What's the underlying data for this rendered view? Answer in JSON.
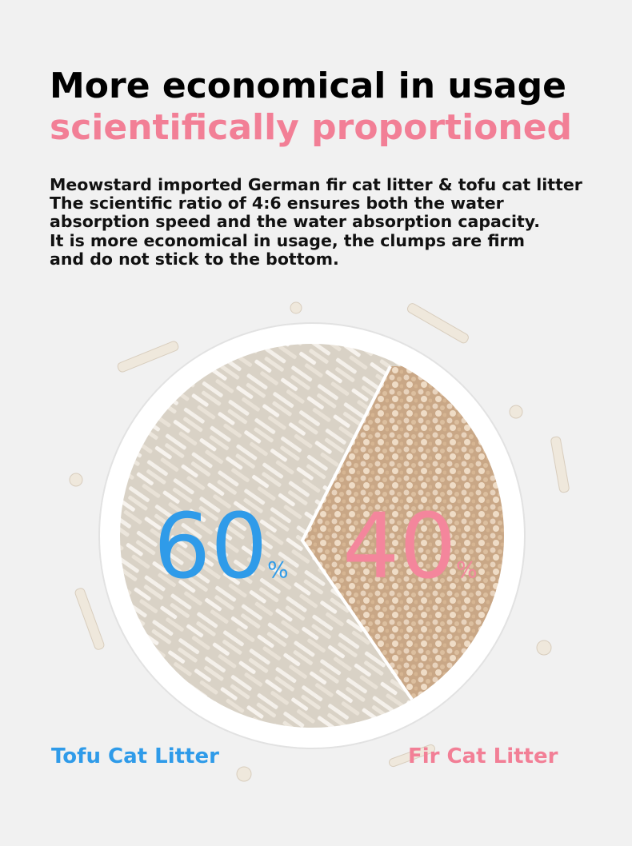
{
  "header": {
    "title": "More economical in usage",
    "subtitle": "scientifically proportioned"
  },
  "body": {
    "lines": [
      "Meowstard imported German fir cat litter & tofu cat litter",
      "The scientific ratio of 4:6 ensures both the water",
      "absorption speed and the water absorption capacity.",
      "It is more economical in usage, the clumps are firm",
      "and do not stick to the bottom."
    ]
  },
  "plate": {
    "left": {
      "number": 60,
      "unit": "%"
    },
    "right": {
      "number": 40,
      "unit": "%"
    }
  },
  "labels": {
    "left": "Tofu Cat Litter",
    "right": "Fir Cat Litter"
  }
}
